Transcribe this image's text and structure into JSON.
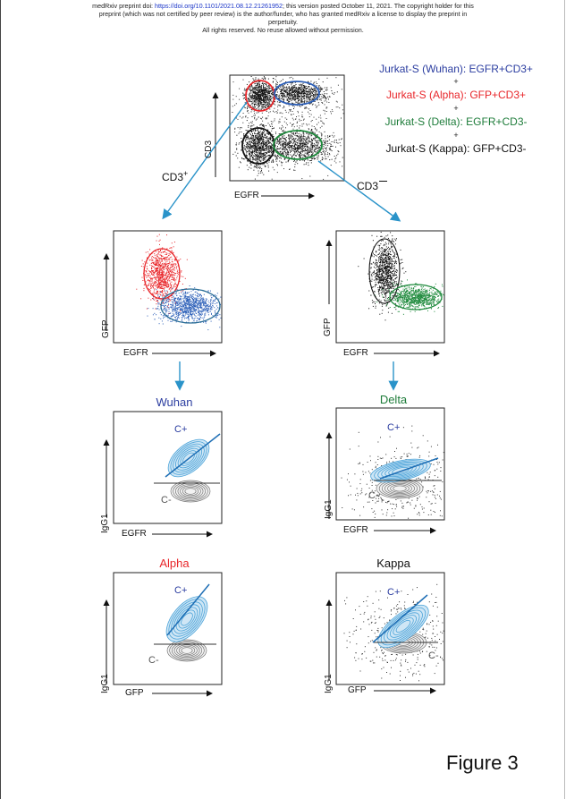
{
  "header": {
    "line1_prefix": "medRxiv preprint doi: ",
    "doi_link": "https://doi.org/10.1101/2021.08.12.21261952",
    "line1_suffix": "; this version posted October 11, 2021. The copyright holder for this",
    "line2": "preprint (which was not certified by peer review) is the author/funder, who has granted medRxiv a license to display the preprint in",
    "line3": "perpetuity.",
    "line4": "All rights reserved. No reuse allowed without permission."
  },
  "legend": {
    "items": [
      {
        "text": "Jurkat-S (Wuhan): EGFR+CD3+",
        "color": "#2b3da0"
      },
      {
        "text": "Jurkat-S (Alpha): GFP+CD3+",
        "color": "#e8262a"
      },
      {
        "text": "Jurkat-S (Delta): EGFR+CD3-",
        "color": "#1e7c3a"
      },
      {
        "text": "Jurkat-S (Kappa): GFP+CD3-",
        "color": "#111111"
      }
    ],
    "plus": "+"
  },
  "top_plot": {
    "xlabel": "EGFR",
    "ylabel": "CD3",
    "gate_left": "CD3",
    "gate_left_sup": "+",
    "gate_right": "CD3"
  },
  "mid_left": {
    "xlabel": "EGFR",
    "ylabel": "GFP"
  },
  "mid_right": {
    "xlabel": "EGFR",
    "ylabel": "GFP"
  },
  "panels": [
    {
      "title": "Wuhan",
      "title_color": "#2b3da0",
      "xlabel": "EGFR",
      "ylabel": "IgG1",
      "c_plus": "C+",
      "c_minus": "C-"
    },
    {
      "title": "Delta",
      "title_color": "#1e7c3a",
      "xlabel": "EGFR",
      "ylabel": "IgG1",
      "c_plus": "C+",
      "c_minus": "C-"
    },
    {
      "title": "Alpha",
      "title_color": "#e8262a",
      "xlabel": "GFP",
      "ylabel": "IgG1",
      "c_plus": "C+",
      "c_minus": "C-"
    },
    {
      "title": "Kappa",
      "title_color": "#111111",
      "xlabel": "GFP",
      "ylabel": "IgG1",
      "c_plus": "C+",
      "c_minus": "C-"
    }
  ],
  "figure_label": "Figure 3",
  "colors": {
    "arrow": "#2a93c9",
    "blue_pop": "#2c5fb8",
    "red_pop": "#e8262a",
    "green_pop": "#1e8a3c",
    "contour_blue": "#4aa3d9",
    "contour_grey": "#777777"
  }
}
